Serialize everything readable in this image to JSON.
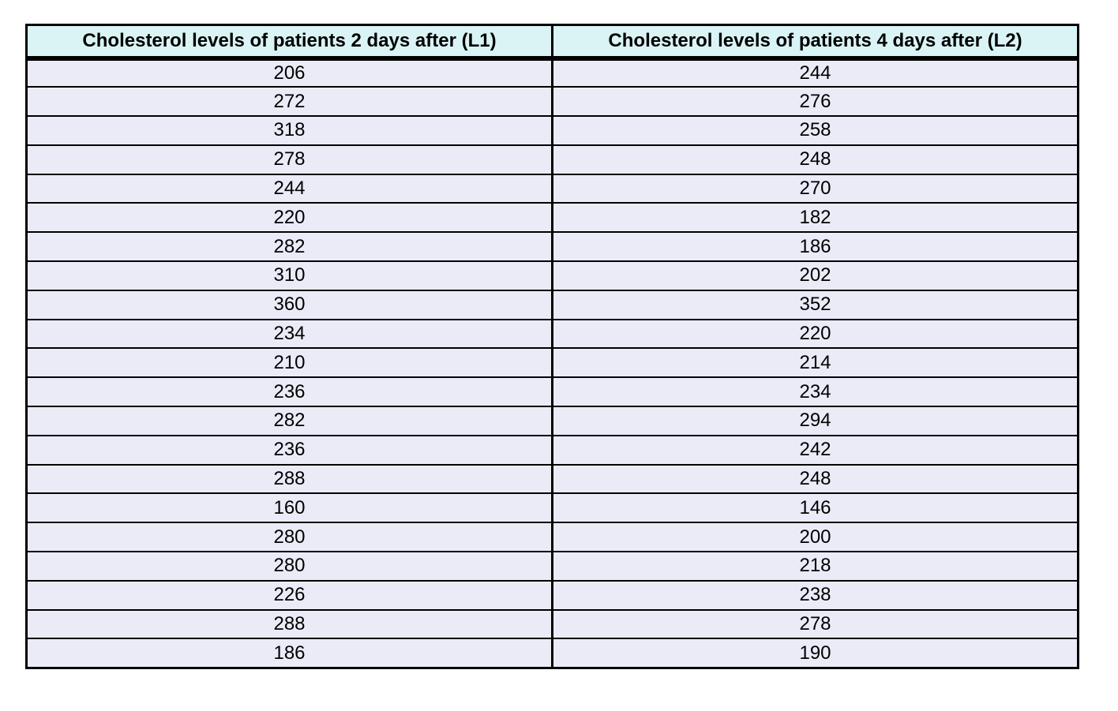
{
  "page": {
    "background_color": "#ffffff"
  },
  "table": {
    "headers": [
      "Cholesterol levels of patients 2 days after (L1)",
      "Cholesterol levels of patients 4 days after (L2)"
    ],
    "rows": [
      [
        "206",
        "244"
      ],
      [
        "272",
        "276"
      ],
      [
        "318",
        "258"
      ],
      [
        "278",
        "248"
      ],
      [
        "244",
        "270"
      ],
      [
        "220",
        "182"
      ],
      [
        "282",
        "186"
      ],
      [
        "310",
        "202"
      ],
      [
        "360",
        "352"
      ],
      [
        "234",
        "220"
      ],
      [
        "210",
        "214"
      ],
      [
        "236",
        "234"
      ],
      [
        "282",
        "294"
      ],
      [
        "236",
        "242"
      ],
      [
        "288",
        "248"
      ],
      [
        "160",
        "146"
      ],
      [
        "280",
        "200"
      ],
      [
        "280",
        "218"
      ],
      [
        "226",
        "238"
      ],
      [
        "288",
        "278"
      ],
      [
        "186",
        "190"
      ]
    ],
    "style": {
      "header_background": "#daf4f6",
      "row_background": "#ebebf8",
      "border_color": "#000000",
      "text_color": "#000000"
    }
  },
  "chart_data": {
    "type": "table",
    "title": "",
    "columns": [
      "Cholesterol levels of patients 2 days after (L1)",
      "Cholesterol levels of patients 4 days after (L2)"
    ],
    "series": [
      {
        "name": "Cholesterol levels of patients 2 days after (L1)",
        "values": [
          206,
          272,
          318,
          278,
          244,
          220,
          282,
          310,
          360,
          234,
          210,
          236,
          282,
          236,
          288,
          160,
          280,
          280,
          226,
          288,
          186
        ]
      },
      {
        "name": "Cholesterol levels of patients 4 days after (L2)",
        "values": [
          244,
          276,
          258,
          248,
          270,
          182,
          186,
          202,
          352,
          220,
          214,
          234,
          294,
          242,
          248,
          146,
          200,
          218,
          238,
          278,
          190
        ]
      }
    ],
    "row_count": 21,
    "layout_hints": {
      "grid": "on",
      "header_thick_bottom_rule": true,
      "values_centered": true
    }
  }
}
